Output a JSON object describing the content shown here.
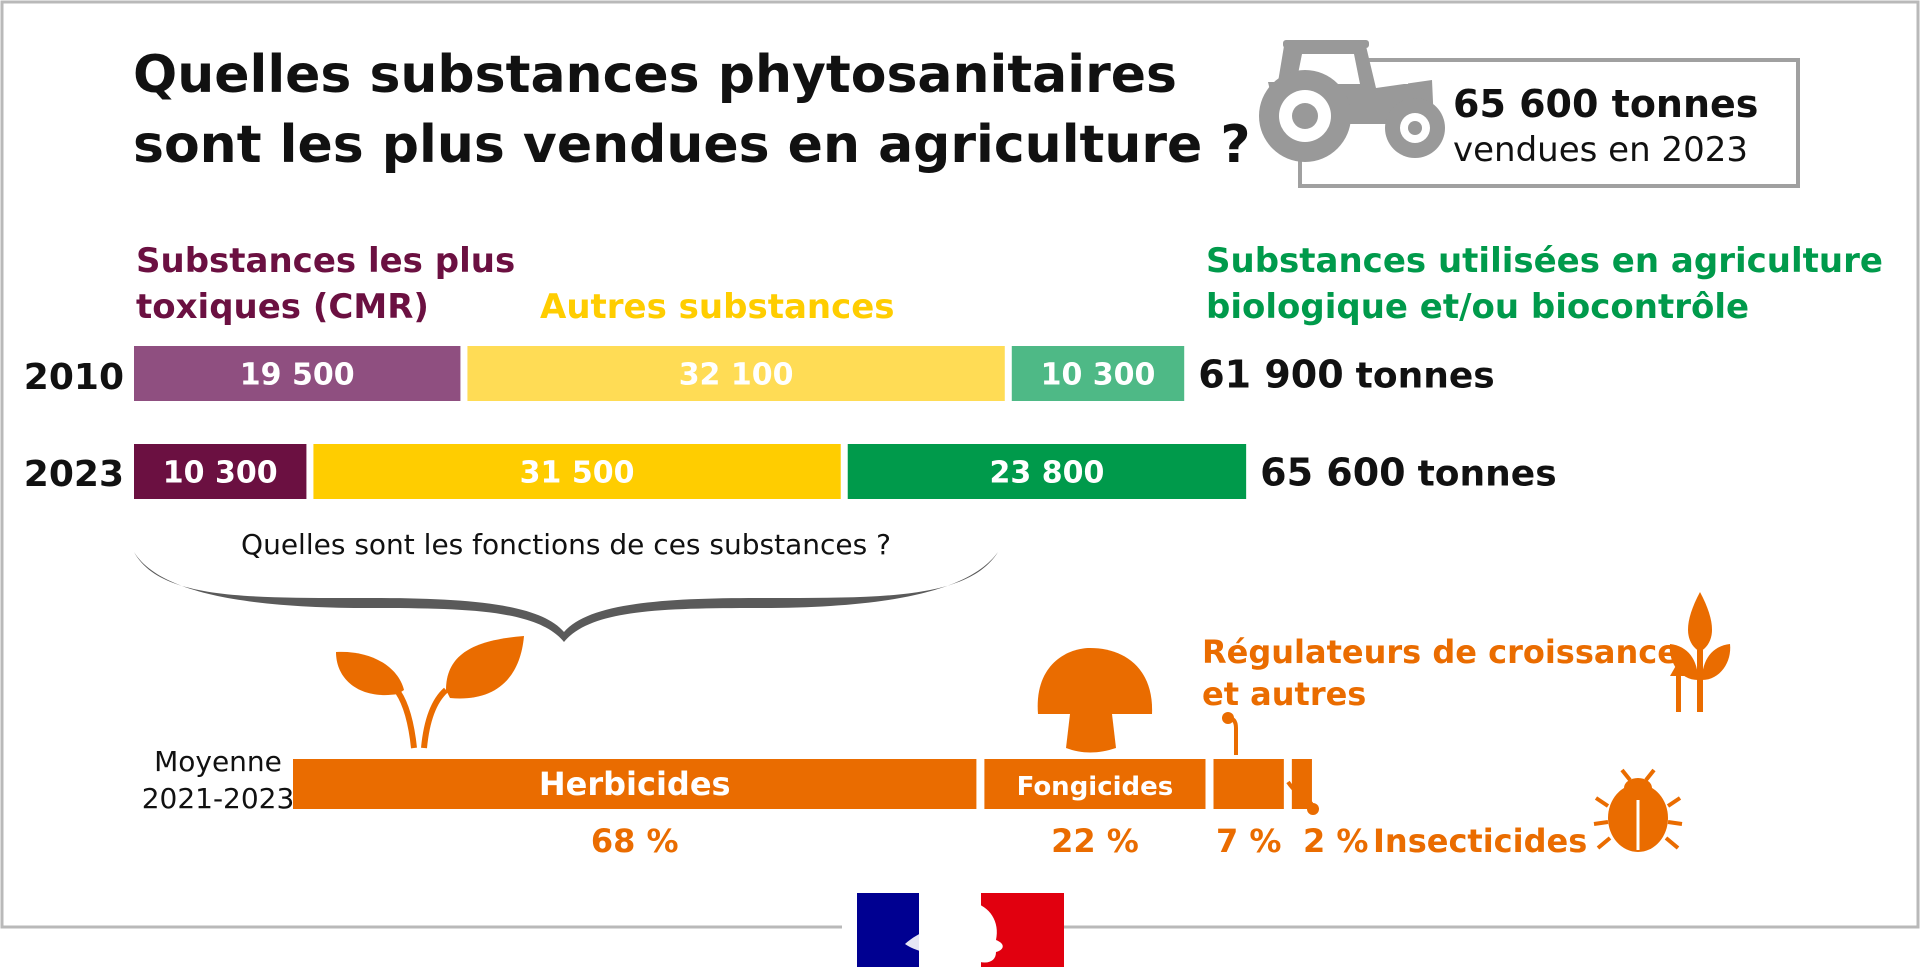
{
  "title_line1": "Quelles substances phytosanitaires",
  "title_line2": "sont les plus vendues en agriculture ?",
  "info_box": {
    "icon": "tractor-icon",
    "value": "65 600 tonnes",
    "subtitle": "vendues en 2023"
  },
  "colors": {
    "cmr": "#8f4f80",
    "cmr_2023": "#6b1041",
    "autres": "#ffdc55",
    "autres_2023": "#ffcd00",
    "bio": "#4eb986",
    "bio_2023": "#009a4b",
    "orange": "#ea6c00",
    "icon_gray": "#999999",
    "brace_gray": "#5a5a5a"
  },
  "question": "Quelles sont les fonctions de ces substances ?",
  "chart_data": [
    {
      "type": "bar",
      "orientation": "horizontal",
      "stacked": true,
      "categories": [
        "2010",
        "2023"
      ],
      "series_labels": [
        [
          "Substances les plus",
          "toxiques (CMR)"
        ],
        [
          "Autres substances"
        ],
        [
          "Substances utilisées en agriculture",
          "biologique et/ou biocontrôle"
        ]
      ],
      "series": [
        {
          "values": [
            19500,
            10300
          ],
          "labels": [
            "19 500",
            "10 300"
          ]
        },
        {
          "values": [
            32100,
            31500
          ],
          "labels": [
            "32 100",
            "31 500"
          ]
        },
        {
          "values": [
            10300,
            23800
          ],
          "labels": [
            "10 300",
            "23 800"
          ]
        }
      ],
      "totals": [
        {
          "value": 61900,
          "label": "61 900",
          "unit": "tonnes"
        },
        {
          "value": 65600,
          "label": "65 600",
          "unit": "tonnes"
        }
      ]
    },
    {
      "type": "bar",
      "orientation": "horizontal",
      "stacked": true,
      "row_label": [
        "Moyenne",
        "2021-2023"
      ],
      "categories": [
        "Herbicides",
        "Fongicides",
        "Régulateurs de croissance et autres",
        "Insecticides"
      ],
      "bar_labels": [
        "Herbicides",
        "Fongicides",
        "",
        ""
      ],
      "values": [
        68,
        22,
        7,
        2
      ],
      "pct_labels": [
        "68 %",
        "22 %",
        "7 %",
        "2 %"
      ],
      "annotations": {
        "regulateurs": [
          "Régulateurs de croissance",
          "et autres"
        ],
        "insecticides": "Insecticides"
      },
      "icons": [
        "plant-icon",
        "mushroom-icon",
        "growth-icon",
        "bug-icon"
      ]
    }
  ]
}
